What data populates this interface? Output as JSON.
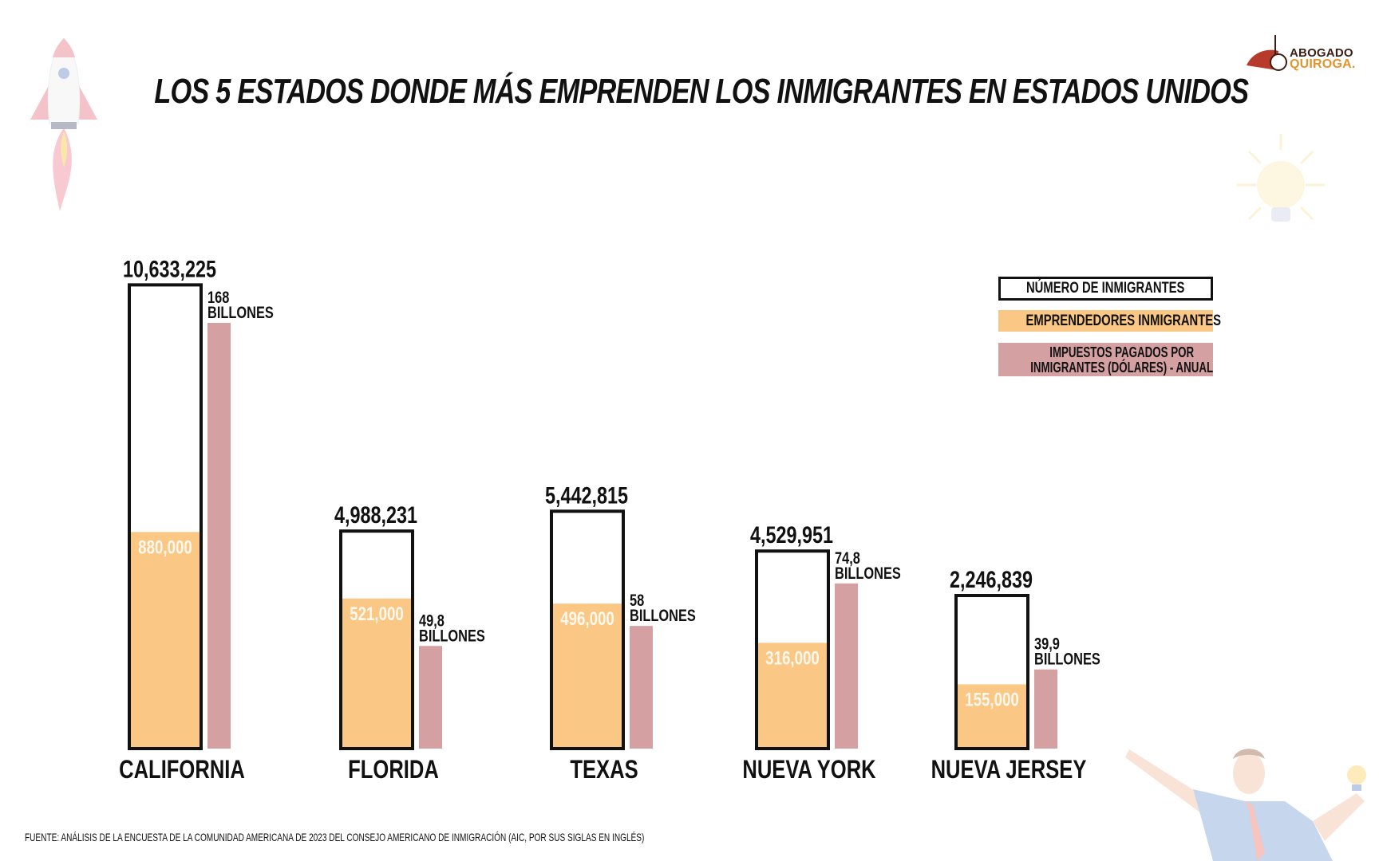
{
  "title": "LOS 5 ESTADOS DONDE MÁS EMPRENDEN LOS INMIGRANTES EN ESTADOS UNIDOS",
  "logo": {
    "line1": "ABOGADO",
    "line2": "QUIROGA."
  },
  "source": "FUENTE: ANÁLISIS DE LA ENCUESTA DE LA COMUNIDAD AMERICANA DE 2023 DEL CONSEJO AMERICANO DE INMIGRACIÓN (AIC, POR SUS SIGLAS EN INGLÉS)",
  "decorations": [
    "rocket-illustration",
    "lightbulb-illustration",
    "man-with-lightbulb-illustration"
  ],
  "colors": {
    "outline": "#111111",
    "entrepreneurs": "#fbc785",
    "taxes": "#d4a0a2",
    "entrepreneurs_label": "#fff8ec"
  },
  "chart_data": {
    "type": "bar",
    "title": "LOS 5 ESTADOS DONDE MÁS EMPRENDEN LOS INMIGRANTES EN ESTADOS UNIDOS",
    "xlabel": "",
    "ylabel": "",
    "grid": false,
    "legend_position": "top-right",
    "categories": [
      "CALIFORNIA",
      "FLORIDA",
      "TEXAS",
      "NUEVA YORK",
      "NUEVA JERSEY"
    ],
    "series": [
      {
        "name": "NÚMERO DE INMIGRANTES",
        "values": [
          10633225,
          4988231,
          5442815,
          4529951,
          2246839
        ],
        "labels": [
          "10,633,225",
          "4,988,231",
          "5,442,815",
          "4,529,951",
          "2,246,839"
        ]
      },
      {
        "name": "EMPRENDEDORES INMIGRANTES",
        "values": [
          880000,
          521000,
          496000,
          316000,
          155000
        ],
        "labels": [
          "880,000",
          "521,000",
          "496,000",
          "316,000",
          "155,000"
        ]
      },
      {
        "name": "IMPUESTOS PAGADOS POR INMIGRANTES (DÓLARES) - ANUAL",
        "unit": "billones",
        "values": [
          168,
          49.8,
          58,
          74.8,
          39.9
        ],
        "labels_top": [
          "168",
          "49,8",
          "58",
          "74,8",
          "39,9"
        ],
        "labels_bottom": [
          "BILLONES",
          "BILLONES",
          "BILLONES",
          "BILLONES",
          "BILLONES"
        ]
      }
    ],
    "legend": [
      "NÚMERO DE INMIGRANTES",
      "EMPRENDEDORES INMIGRANTES",
      "IMPUESTOS PAGADOS POR INMIGRANTES (DÓLARES) - ANUAL"
    ],
    "legend_lines": {
      "third_line1": "IMPUESTOS PAGADOS POR",
      "third_line2": "INMIGRANTES (DÓLARES) - ANUAL"
    }
  }
}
